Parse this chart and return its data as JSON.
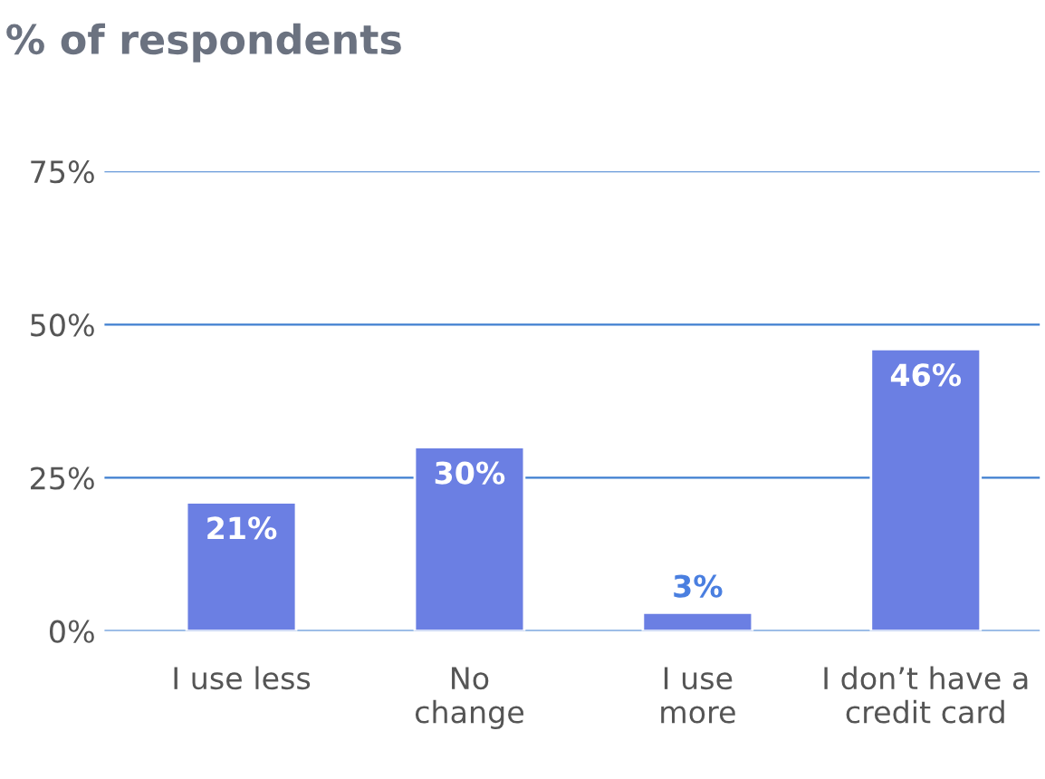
{
  "chart_data": {
    "type": "bar",
    "title": "% of respondents",
    "categories": [
      "I use less",
      "No\nchange",
      "I use\nmore",
      "I don’t have a\ncredit card"
    ],
    "values": [
      21,
      30,
      3,
      46
    ],
    "value_labels": [
      "21%",
      "30%",
      "3%",
      "46%"
    ],
    "color": "#6b7fe3",
    "ylim": [
      0,
      75
    ],
    "yticks": [
      {
        "value": 0,
        "label": "0%"
      },
      {
        "value": 25,
        "label": "25%"
      },
      {
        "value": 50,
        "label": "50%"
      },
      {
        "value": 75,
        "label": "75%"
      }
    ],
    "grid": "y"
  }
}
